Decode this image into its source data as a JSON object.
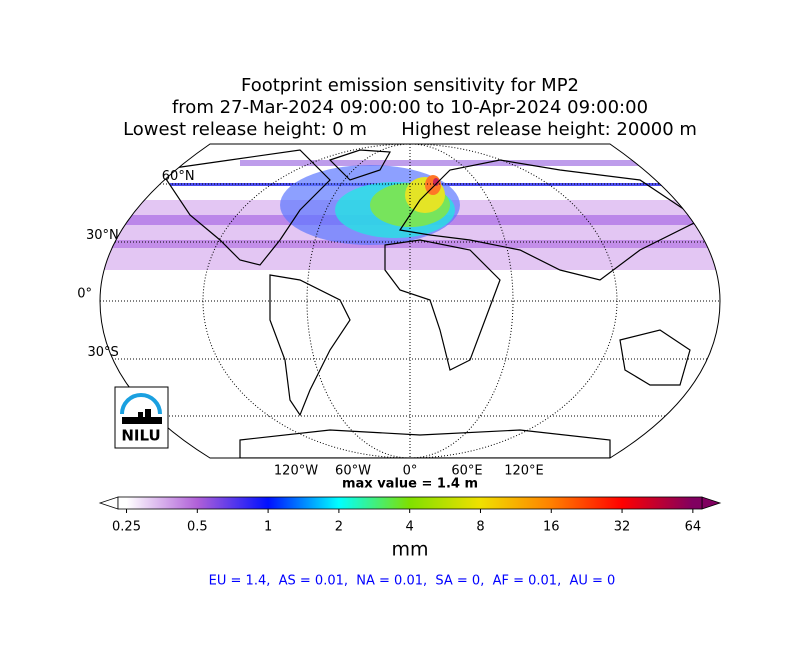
{
  "title": [
    "Footprint emission sensitivity for MP2",
    "from 27-Mar-2024 09:00:00 to 10-Apr-2024 09:00:00",
    "Lowest release height: 0 m      Highest release height: 20000 m"
  ],
  "map": {
    "lat_labels": [
      {
        "value": 60,
        "label": "60°N"
      },
      {
        "value": 30,
        "label": "30°N"
      },
      {
        "value": 0,
        "label": "0°"
      },
      {
        "value": -30,
        "label": "30°S"
      }
    ],
    "lon_labels": [
      {
        "value": -120,
        "label": "120°W"
      },
      {
        "value": -60,
        "label": "60°W"
      },
      {
        "value": 0,
        "label": "0°"
      },
      {
        "value": 60,
        "label": "60°E"
      },
      {
        "value": 120,
        "label": "120°E"
      }
    ],
    "logo": "NILU"
  },
  "max_value": "max value = 1.4 m",
  "colorbar": {
    "log_scale": true,
    "lim": [
      0.23,
      70
    ],
    "ticks": [
      0.25,
      0.5,
      1,
      2,
      4,
      8,
      16,
      32,
      64
    ],
    "colors": [
      "#ffffff",
      "#b060d8",
      "#0010ff",
      "#00ffff",
      "#80e000",
      "#f0e000",
      "#ff8000",
      "#ff0000",
      "#800060"
    ],
    "label": "mm"
  },
  "summary": "EU = 1.4,  AS = 0.01,  NA = 0.01,  SA = 0,  AF = 0.01,  AU = 0"
}
